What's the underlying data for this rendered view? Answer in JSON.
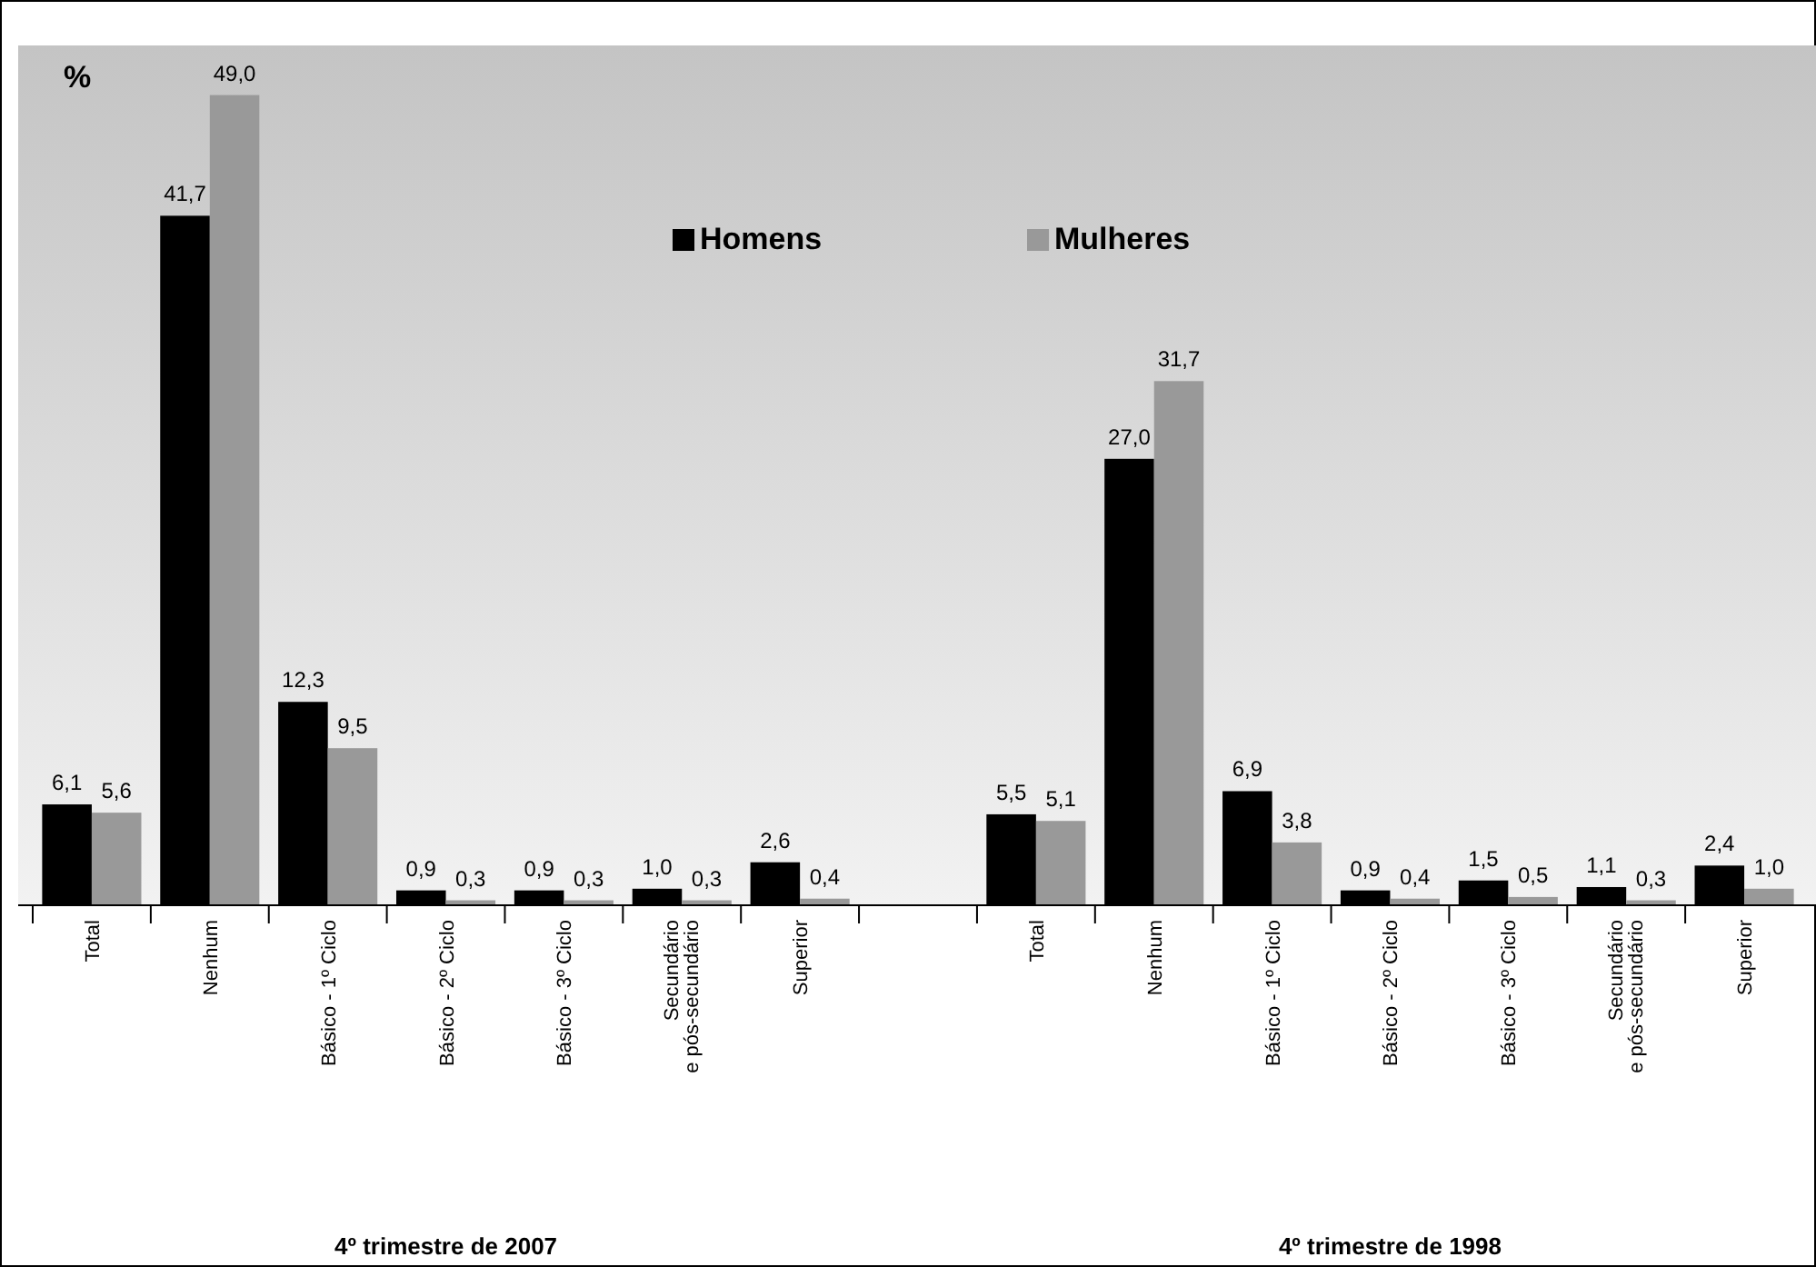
{
  "chart_data": {
    "type": "bar",
    "ylabel": "%",
    "categories": [
      "Total",
      "Nenhum",
      "Básico - 1º Ciclo",
      "Básico - 2º Ciclo",
      "Básico - 3º Ciclo",
      "Secundário\ne pós-secundário",
      "Superior",
      null,
      "Total",
      "Nenhum",
      "Básico - 1º Ciclo",
      "Básico - 2º Ciclo",
      "Básico - 3º Ciclo",
      "Secundário\ne pós-secundário",
      "Superior"
    ],
    "series": [
      {
        "name": "Homens",
        "color": "#000000",
        "values": [
          6.1,
          41.7,
          12.3,
          0.9,
          0.9,
          1.0,
          2.6,
          null,
          5.5,
          27.0,
          6.9,
          0.9,
          1.5,
          1.1,
          2.4
        ],
        "value_labels": [
          "6,1",
          "41,7",
          "12,3",
          "0,9",
          "0,9",
          "1,0",
          "2,6",
          null,
          "5,5",
          "27,0",
          "6,9",
          "0,9",
          "1,5",
          "1,1",
          "2,4"
        ]
      },
      {
        "name": "Mulheres",
        "color": "#999999",
        "values": [
          5.6,
          49.0,
          9.5,
          0.3,
          0.3,
          0.3,
          0.4,
          null,
          5.1,
          31.7,
          3.8,
          0.4,
          0.5,
          0.3,
          1.0
        ],
        "value_labels": [
          "5,6",
          "49,0",
          "9,5",
          "0,3",
          "0,3",
          "0,3",
          "0,4",
          null,
          "5,1",
          "31,7",
          "3,8",
          "0,4",
          "0,5",
          "0,3",
          "1,0"
        ]
      }
    ],
    "ylim": [
      0,
      52
    ],
    "legend": "top",
    "annotations": [
      "4º trimestre de 2007",
      "4º trimestre de 1998"
    ]
  }
}
